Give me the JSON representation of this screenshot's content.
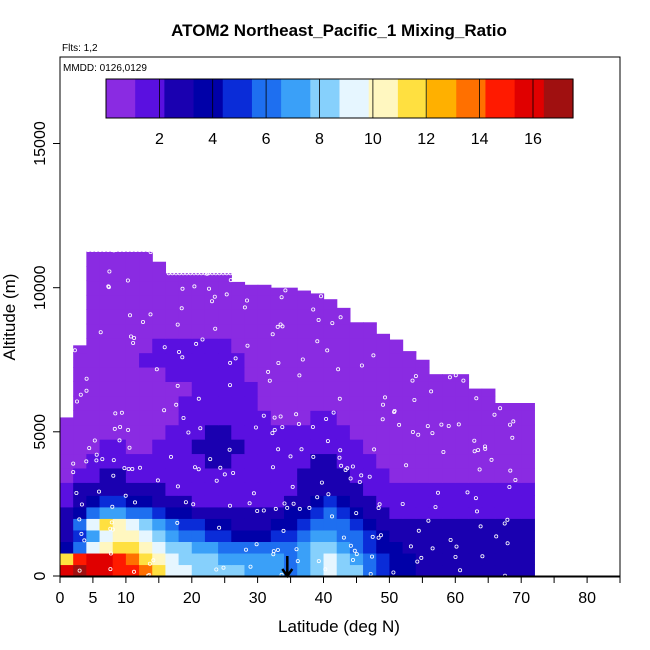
{
  "chart_data": {
    "type": "heatmap",
    "title": "ATOM2 Northeast_Pacific_1 Mixing_Ratio",
    "subtitle_flights": "Flts: 1,2",
    "subtitle_dates": "MMDD: 0126,0129",
    "xlabel": "Latitude (deg N)",
    "ylabel": "Altitude (m)",
    "xlim": [
      0,
      85
    ],
    "ylim": [
      0,
      18000
    ],
    "x_ticks": [
      0,
      5,
      10,
      20,
      30,
      40,
      50,
      60,
      70,
      80
    ],
    "x_tick_labels": [
      "0",
      "5",
      "10",
      "20",
      "30",
      "40",
      "50",
      "60",
      "70",
      "80"
    ],
    "y_ticks": [
      0,
      5000,
      10000,
      15000
    ],
    "y_tick_labels": [
      "0",
      "5000",
      "10000",
      "15000"
    ],
    "colorbar": {
      "range": [
        0,
        17.5
      ],
      "ticks": [
        2,
        4,
        6,
        8,
        10,
        12,
        14,
        16
      ],
      "tick_labels": [
        "2",
        "4",
        "6",
        "8",
        "10",
        "12",
        "14",
        "16"
      ],
      "colors": [
        "#8a2be2",
        "#5a10e0",
        "#1a00b0",
        "#0000a8",
        "#0a2cd8",
        "#1e6ff0",
        "#3aa0f8",
        "#86d0fc",
        "#e6f6ff",
        "#fff7c0",
        "#ffe040",
        "#ffb000",
        "#ff7000",
        "#ff1a00",
        "#e00000",
        "#a01010"
      ]
    },
    "grid": false,
    "arrow_marker_latitude": 34.5,
    "lat_bins": [
      1,
      3,
      5,
      7,
      9,
      11,
      13,
      15,
      17,
      19,
      21,
      23,
      25,
      27,
      29,
      31,
      33,
      35,
      37,
      39,
      41,
      43,
      45,
      47,
      49,
      51,
      53,
      55,
      57,
      59,
      61,
      63,
      65,
      67,
      69,
      71
    ],
    "top_altitude_by_bin": [
      5500,
      8000,
      11400,
      11400,
      11400,
      11400,
      11400,
      10900,
      10500,
      10500,
      10500,
      10500,
      10500,
      10200,
      10100,
      10100,
      10000,
      10000,
      9900,
      9800,
      9600,
      9300,
      8800,
      8800,
      8400,
      8200,
      7800,
      7500,
      7000,
      7000,
      7000,
      6500,
      6500,
      6000,
      6000,
      6000
    ],
    "altitude_levels_m": [
      200,
      600,
      1000,
      1400,
      1800,
      2200,
      2600,
      3000,
      3500,
      4000,
      4500,
      5000,
      5500,
      6000,
      6500,
      7000,
      7500,
      8000,
      8500,
      9000,
      9500,
      10000,
      10500,
      11000
    ],
    "mixing_ratio_grid_note": "rows = altitude_levels_m (low to high); cols = lat_bins",
    "mixing_ratio_grid": [
      [
        16,
        16.5,
        16,
        15.5,
        15,
        15,
        14,
        11,
        9,
        9,
        8,
        8,
        8,
        8,
        7,
        7,
        7,
        6.5,
        7,
        8,
        9,
        8,
        8,
        6,
        5,
        4,
        3.5,
        3,
        3,
        3,
        3,
        3,
        3,
        3,
        3,
        3
      ],
      [
        12,
        15,
        16,
        16,
        15,
        14,
        12,
        10,
        9,
        8.5,
        8,
        8,
        7.5,
        7.5,
        7,
        7,
        7,
        6.5,
        7,
        8.5,
        9,
        8,
        7.5,
        6,
        5,
        4,
        3.5,
        3,
        3,
        3,
        3,
        3,
        3,
        3,
        3,
        3
      ],
      [
        4,
        6,
        9,
        10,
        11,
        11,
        10,
        9,
        8.5,
        8,
        7.5,
        7,
        6.5,
        6,
        6,
        6,
        6.5,
        6.5,
        7,
        8,
        8.5,
        7.5,
        6.5,
        5,
        4,
        3.5,
        3,
        3,
        3,
        3,
        3,
        3,
        3,
        3,
        3,
        3
      ],
      [
        3,
        5,
        7,
        9,
        10,
        10.5,
        9.5,
        8,
        7,
        6.5,
        6,
        5,
        4.5,
        4,
        4,
        4,
        4.5,
        5,
        6,
        7,
        7.5,
        6.5,
        5.5,
        4.5,
        3.5,
        3,
        2.5,
        2.5,
        2.5,
        2.5,
        2.5,
        2.5,
        2.5,
        2.5,
        2.5,
        2.5
      ],
      [
        3,
        6,
        9,
        11,
        10,
        9,
        8,
        7,
        6,
        5,
        4.5,
        4,
        3.5,
        3,
        3,
        3,
        3.5,
        4,
        5,
        6,
        6.5,
        5.5,
        4.5,
        3.5,
        3,
        2.5,
        2.5,
        2.5,
        2.5,
        2.5,
        2.5,
        2.5,
        2.5,
        2.5,
        2.5,
        2.5
      ],
      [
        2.5,
        4,
        6,
        7,
        7,
        6.5,
        6,
        5,
        4,
        3.5,
        3,
        3,
        2.5,
        2.5,
        2.5,
        2.5,
        3,
        3.5,
        4,
        5,
        5.5,
        5,
        4,
        3,
        2.5,
        2,
        2,
        2,
        2,
        2,
        2,
        2,
        2,
        2,
        2,
        2
      ],
      [
        2,
        3,
        4,
        4.5,
        4.5,
        4,
        3.5,
        3,
        2.5,
        2.5,
        2,
        2,
        2,
        2,
        2,
        2,
        2,
        2.5,
        3,
        4,
        4.5,
        4,
        3,
        2.5,
        2,
        1.8,
        1.8,
        1.8,
        1.8,
        1.8,
        1.8,
        1.8,
        1.8,
        1.8,
        1.8,
        1.8
      ],
      [
        1.5,
        2.5,
        2.8,
        3,
        3,
        2.8,
        2.5,
        2.2,
        2,
        1.8,
        1.8,
        1.8,
        1.8,
        1.8,
        1.8,
        1.8,
        1.8,
        2,
        2.5,
        3,
        3.2,
        3,
        2.5,
        2,
        1.6,
        1.4,
        1.3,
        1.2,
        1.2,
        1.2,
        1.2,
        1.2,
        1.2,
        1.2,
        1.2,
        1.2
      ],
      [
        1,
        1.6,
        2,
        2.2,
        2.2,
        2,
        1.8,
        1.8,
        1.8,
        1.8,
        1.8,
        1.8,
        1.8,
        1.8,
        1.8,
        1.8,
        1.8,
        2,
        2.2,
        2.5,
        2.6,
        2.4,
        2,
        1.6,
        1.2,
        1,
        0.8,
        0.8,
        0.8,
        0.8,
        0.8,
        0.8,
        0.8,
        0.8,
        0.8,
        0.8
      ],
      [
        0.7,
        1,
        1.3,
        1.5,
        1.5,
        1.4,
        1.3,
        1.3,
        1.6,
        1.8,
        2,
        2.2,
        2.2,
        2,
        1.8,
        1.6,
        1.6,
        1.8,
        2,
        2.2,
        2.3,
        2,
        1.6,
        1.2,
        0.9,
        0.7,
        0.6,
        0.6,
        0.6,
        0.6,
        0.6,
        0.6,
        0.6,
        0.6,
        0.6,
        0.6
      ],
      [
        0.5,
        0.8,
        1,
        1.1,
        1.1,
        1,
        1,
        1.1,
        1.4,
        1.8,
        2.2,
        2.4,
        2.4,
        2.2,
        1.8,
        1.5,
        1.3,
        1.4,
        1.6,
        1.8,
        1.8,
        1.6,
        1.2,
        0.9,
        0.7,
        0.5,
        0.5,
        0.5,
        0.5,
        0.5,
        0.5,
        0.5,
        0.5,
        0.5,
        0.5,
        0.5
      ],
      [
        0.4,
        0.6,
        0.8,
        0.9,
        0.9,
        0.9,
        0.9,
        1,
        1.2,
        1.6,
        2,
        2.3,
        2.3,
        2,
        1.6,
        1.3,
        1.1,
        1.1,
        1.3,
        1.5,
        1.5,
        1.3,
        1,
        0.7,
        0.5,
        0.4,
        0.4,
        0.4,
        0.4,
        0.4,
        0.4,
        0.4,
        0.4,
        0.4,
        0.4,
        0.4
      ],
      [
        0.3,
        0.5,
        0.6,
        0.7,
        0.7,
        0.8,
        0.8,
        0.9,
        1,
        1.3,
        1.7,
        2,
        2,
        1.8,
        1.4,
        1.1,
        0.9,
        0.9,
        1,
        1.2,
        1.2,
        1,
        0.8,
        0.6,
        0.4,
        0.3,
        0.3,
        0.3,
        0.3,
        0.3,
        0.3,
        0.3,
        0.3,
        0.3,
        0.3,
        0.3
      ],
      [
        0.3,
        0.4,
        0.5,
        0.6,
        0.6,
        0.7,
        0.7,
        0.8,
        0.9,
        1.1,
        1.4,
        1.7,
        1.8,
        1.6,
        1.2,
        1,
        0.8,
        0.8,
        0.9,
        1,
        1,
        0.8,
        0.6,
        0.5,
        0.4,
        0.3,
        0.3,
        0.3,
        0.3,
        0.3,
        0.3,
        0.3,
        0.3,
        0.3,
        0.3,
        0.3
      ],
      [
        0.3,
        0.4,
        0.5,
        0.5,
        0.6,
        0.6,
        0.7,
        0.8,
        0.9,
        1,
        1.3,
        1.5,
        1.6,
        1.4,
        1.1,
        0.9,
        0.8,
        0.7,
        0.8,
        0.9,
        0.9,
        0.7,
        0.6,
        0.5,
        0.4,
        0.3,
        0.3,
        0.3,
        0.3,
        0.3,
        0.3,
        0.3,
        0.3,
        0.3,
        0.3,
        0.3
      ],
      [
        0.3,
        0.4,
        0.5,
        0.6,
        0.7,
        0.8,
        0.9,
        1,
        1.1,
        1.3,
        1.6,
        1.7,
        1.6,
        1.3,
        1,
        0.8,
        0.7,
        0.7,
        0.8,
        0.9,
        0.8,
        0.7,
        0.5,
        0.4,
        0.3,
        0.3,
        0.3,
        0.3,
        0.3,
        0.3,
        0.3,
        0.3,
        0.3,
        0.3,
        0.3,
        0.3
      ],
      [
        0.3,
        0.4,
        0.5,
        0.6,
        0.8,
        1,
        1.2,
        1.4,
        1.6,
        1.8,
        1.9,
        1.8,
        1.5,
        1.2,
        0.9,
        0.7,
        0.6,
        0.6,
        0.7,
        0.8,
        0.7,
        0.6,
        0.5,
        0.4,
        0.3,
        0.3,
        0.3,
        0.3,
        0.3,
        0.3,
        0.3,
        0.3,
        0.3,
        0.3,
        0.3,
        0.3
      ],
      [
        0.3,
        0.4,
        0.5,
        0.6,
        0.7,
        0.9,
        1,
        1.1,
        1.2,
        1.3,
        1.3,
        1.2,
        1.1,
        0.9,
        0.8,
        0.7,
        0.6,
        0.6,
        0.6,
        0.7,
        0.6,
        0.5,
        0.4,
        0.4,
        0.3,
        0.3,
        0.3,
        0.3,
        0.3,
        0.3,
        0.3,
        0.3,
        0.3,
        0.3,
        0.3,
        0.3
      ],
      [
        0.3,
        0.4,
        0.4,
        0.5,
        0.6,
        0.7,
        0.8,
        0.9,
        1,
        1,
        1,
        0.9,
        0.8,
        0.8,
        0.7,
        0.6,
        0.5,
        0.5,
        0.5,
        0.6,
        0.5,
        0.5,
        0.4,
        0.3,
        0.3,
        0.3,
        0.3,
        0.3,
        0.3,
        0.3,
        0.3,
        0.3,
        0.3,
        0.3,
        0.3,
        0.3
      ],
      [
        0.3,
        0.3,
        0.4,
        0.5,
        0.5,
        0.6,
        0.7,
        0.8,
        0.8,
        0.8,
        0.8,
        0.8,
        0.7,
        0.7,
        0.6,
        0.5,
        0.5,
        0.5,
        0.5,
        0.5,
        0.5,
        0.4,
        0.4,
        0.3,
        0.3,
        0.3,
        0.3,
        0.3,
        0.3,
        0.3,
        0.3,
        0.3,
        0.3,
        0.3,
        0.3,
        0.3
      ],
      [
        0.3,
        0.3,
        0.4,
        0.4,
        0.5,
        0.5,
        0.6,
        0.6,
        0.7,
        0.7,
        0.7,
        0.7,
        0.6,
        0.6,
        0.5,
        0.5,
        0.4,
        0.4,
        0.4,
        0.4,
        0.4,
        0.4,
        0.3,
        0.3,
        0.3,
        0.3,
        0.3,
        0.3,
        0.3,
        0.3,
        0.3,
        0.3,
        0.3,
        0.3,
        0.3,
        0.3
      ],
      [
        0.3,
        0.3,
        0.3,
        0.4,
        0.4,
        0.5,
        0.5,
        0.5,
        0.6,
        0.6,
        0.6,
        0.6,
        0.5,
        0.5,
        0.5,
        0.4,
        0.4,
        0.4,
        0.4,
        0.4,
        0.4,
        0.3,
        0.3,
        0.3,
        0.3,
        0.3,
        0.3,
        0.3,
        0.3,
        0.3,
        0.3,
        0.3,
        0.3,
        0.3,
        0.3,
        0.3
      ],
      [
        0.3,
        0.3,
        0.3,
        0.3,
        0.4,
        0.4,
        0.4,
        0.5,
        0.5,
        0.5,
        0.5,
        0.5,
        0.5,
        0.4,
        0.4,
        0.4,
        0.4,
        0.4,
        0.3,
        0.3,
        0.3,
        0.3,
        0.3,
        0.3,
        0.3,
        0.3,
        0.3,
        0.3,
        0.3,
        0.3,
        0.3,
        0.3,
        0.3,
        0.3,
        0.3,
        0.3
      ],
      [
        0.3,
        0.3,
        0.3,
        0.3,
        0.3,
        0.4,
        0.4,
        0.4,
        0.4,
        0.4,
        0.4,
        0.4,
        0.4,
        0.4,
        0.4,
        0.3,
        0.3,
        0.3,
        0.3,
        0.3,
        0.3,
        0.3,
        0.3,
        0.3,
        0.3,
        0.3,
        0.3,
        0.3,
        0.3,
        0.3,
        0.3,
        0.3,
        0.3,
        0.3,
        0.3,
        0.3
      ]
    ]
  }
}
